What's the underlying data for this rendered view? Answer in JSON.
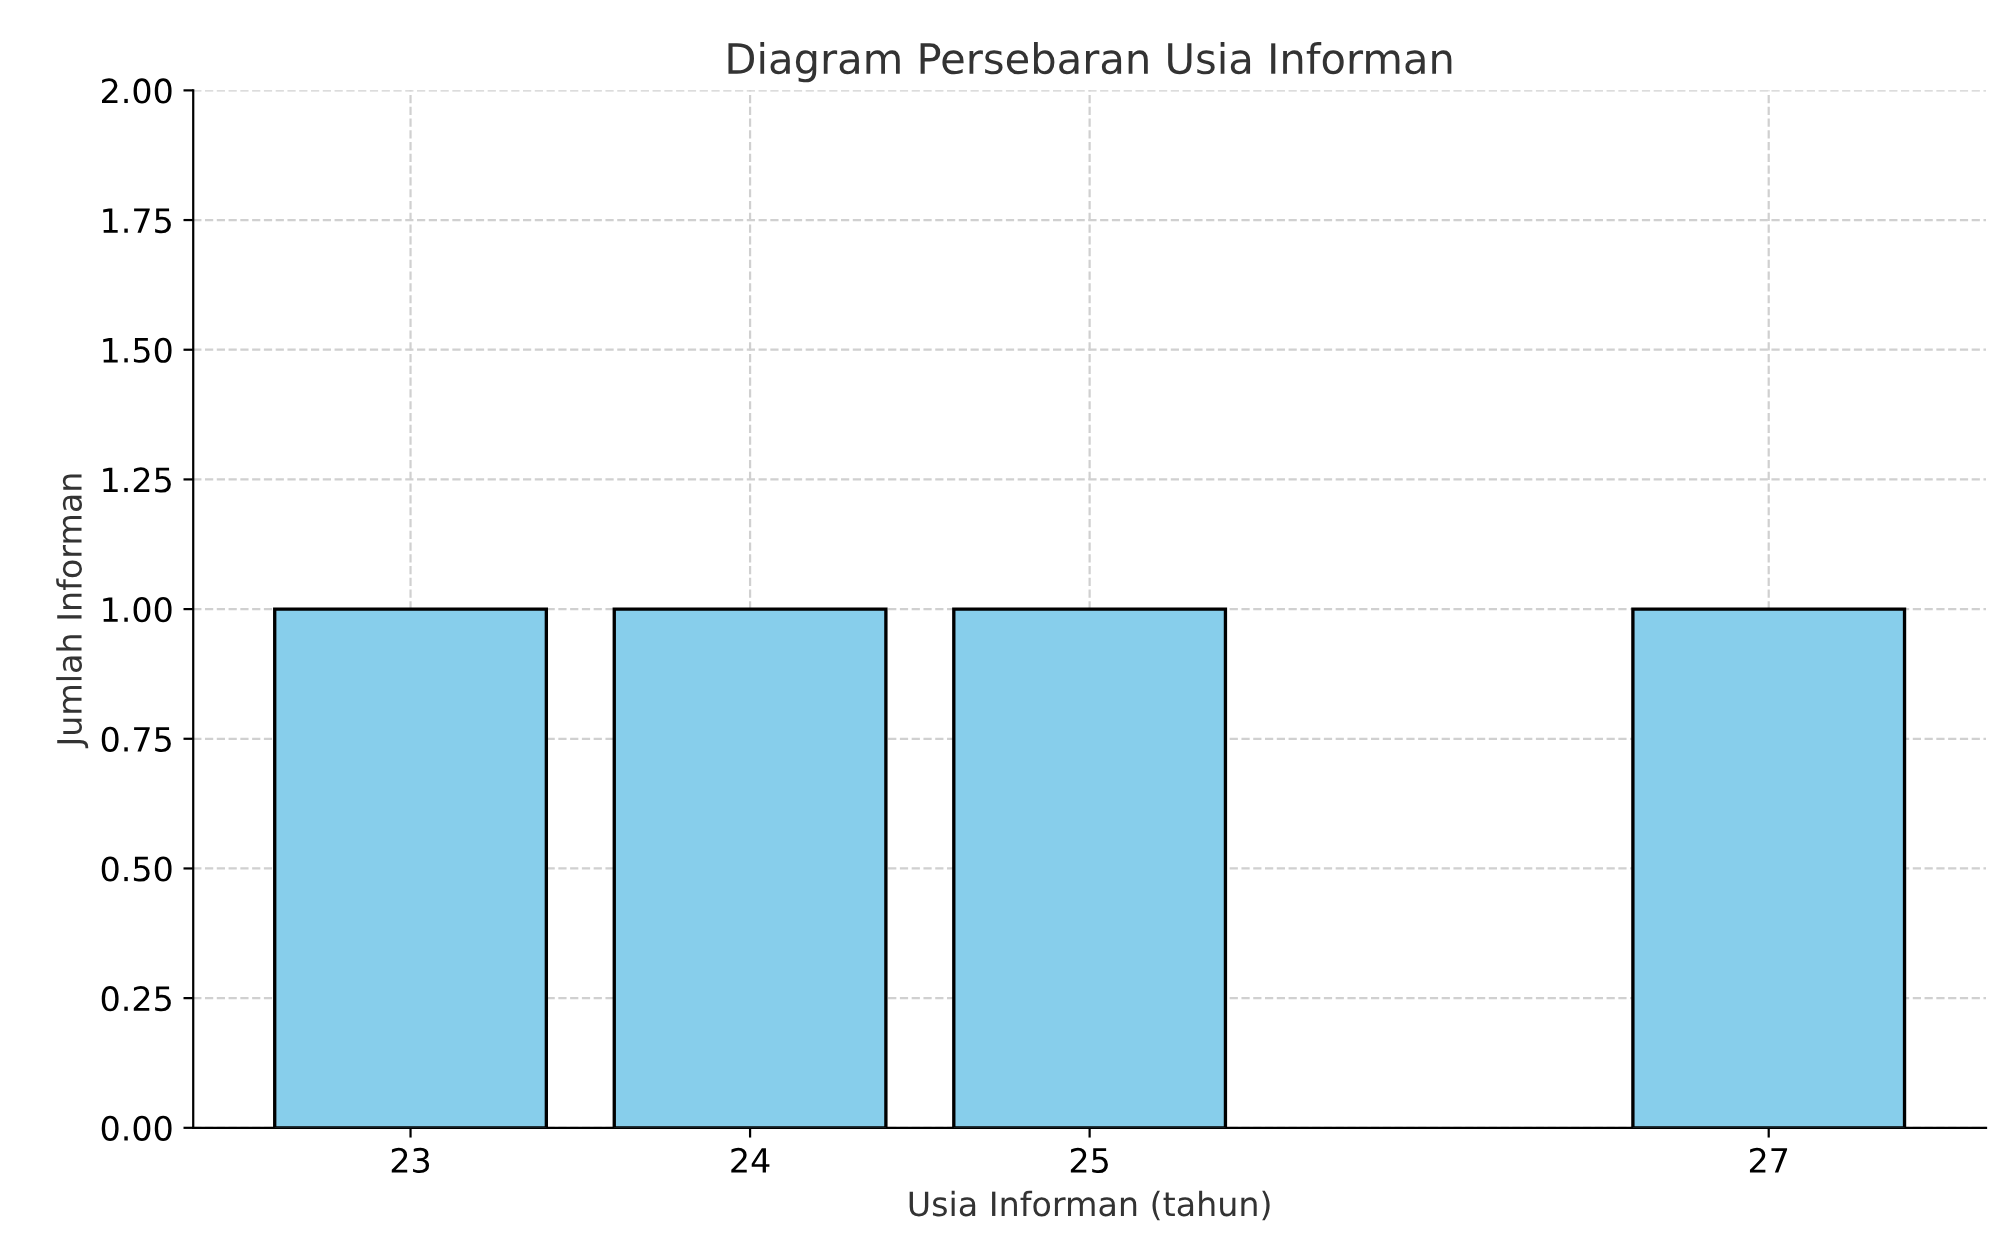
{
  "chart_data": {
    "type": "bar",
    "title": "Diagram Persebaran Usia Informan",
    "xlabel": "Usia Informan (tahun)",
    "ylabel": "Jumlah Informan",
    "x": [
      23,
      24,
      25,
      27
    ],
    "values": [
      1,
      1,
      1,
      1
    ],
    "color": "#87ceeb",
    "xlim": [
      22.36,
      27.64
    ],
    "xticks": [
      23,
      24,
      25,
      27
    ],
    "ylim": [
      0,
      2
    ],
    "yticks": [
      {
        "value": 0,
        "label": "0.00"
      },
      {
        "value": 0.25,
        "label": "0.25"
      },
      {
        "value": 0.5,
        "label": "0.50"
      },
      {
        "value": 0.75,
        "label": "0.75"
      },
      {
        "value": 1,
        "label": "1.00"
      },
      {
        "value": 1.25,
        "label": "1.25"
      },
      {
        "value": 1.5,
        "label": "1.50"
      },
      {
        "value": 1.75,
        "label": "1.75"
      },
      {
        "value": 2,
        "label": "2.00"
      }
    ],
    "grid": true
  }
}
